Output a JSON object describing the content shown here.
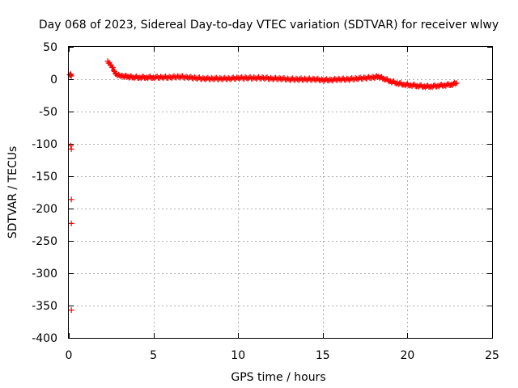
{
  "chart_data": {
    "type": "scatter",
    "title": "Day 068 of 2023, Sidereal Day-to-day VTEC variation (SDTVAR) for receiver wlwy",
    "xlabel": "GPS time / hours",
    "ylabel": "SDTVAR / TECUs",
    "xlim": [
      0,
      25
    ],
    "ylim": [
      -400,
      50
    ],
    "xticks": [
      0,
      5,
      10,
      15,
      20,
      25
    ],
    "yticks": [
      50,
      0,
      -50,
      -100,
      -150,
      -200,
      -250,
      -300,
      -350,
      -400
    ],
    "grid": true,
    "marker": "+",
    "series": [
      {
        "name": "SDTVAR",
        "color": "#ff0000",
        "points": [
          [
            0.05,
            7
          ],
          [
            0.1,
            6
          ],
          [
            0.12,
            8
          ],
          [
            0.15,
            5
          ],
          [
            0.12,
            -103
          ],
          [
            0.15,
            -108
          ],
          [
            0.15,
            -186
          ],
          [
            0.15,
            -223
          ],
          [
            0.15,
            -357
          ],
          [
            2.3,
            28
          ],
          [
            2.4,
            25
          ],
          [
            2.5,
            22
          ],
          [
            2.6,
            18
          ],
          [
            2.7,
            12
          ],
          [
            2.8,
            8
          ],
          [
            3.0,
            6
          ],
          [
            3.2,
            5
          ],
          [
            3.5,
            4
          ],
          [
            3.8,
            3
          ],
          [
            4.2,
            3
          ],
          [
            4.6,
            3
          ],
          [
            5.0,
            3
          ],
          [
            5.5,
            3
          ],
          [
            6.0,
            3
          ],
          [
            6.5,
            4
          ],
          [
            7.0,
            3
          ],
          [
            7.5,
            2
          ],
          [
            8.0,
            1
          ],
          [
            8.5,
            1
          ],
          [
            9.0,
            1
          ],
          [
            9.5,
            1
          ],
          [
            10.0,
            2
          ],
          [
            10.5,
            2
          ],
          [
            11.0,
            2
          ],
          [
            11.5,
            2
          ],
          [
            12.0,
            1
          ],
          [
            12.5,
            1
          ],
          [
            13.0,
            0
          ],
          [
            13.5,
            0
          ],
          [
            14.0,
            0
          ],
          [
            14.5,
            0
          ],
          [
            15.0,
            -1
          ],
          [
            15.5,
            -1
          ],
          [
            16.0,
            0
          ],
          [
            16.5,
            0
          ],
          [
            17.0,
            1
          ],
          [
            17.5,
            2
          ],
          [
            18.0,
            3
          ],
          [
            18.3,
            4
          ],
          [
            18.6,
            1
          ],
          [
            19.0,
            -3
          ],
          [
            19.4,
            -6
          ],
          [
            19.8,
            -8
          ],
          [
            20.2,
            -9
          ],
          [
            20.6,
            -10
          ],
          [
            21.0,
            -11
          ],
          [
            21.4,
            -11
          ],
          [
            21.8,
            -10
          ],
          [
            22.2,
            -9
          ],
          [
            22.6,
            -8
          ],
          [
            22.9,
            -6
          ]
        ]
      }
    ]
  }
}
